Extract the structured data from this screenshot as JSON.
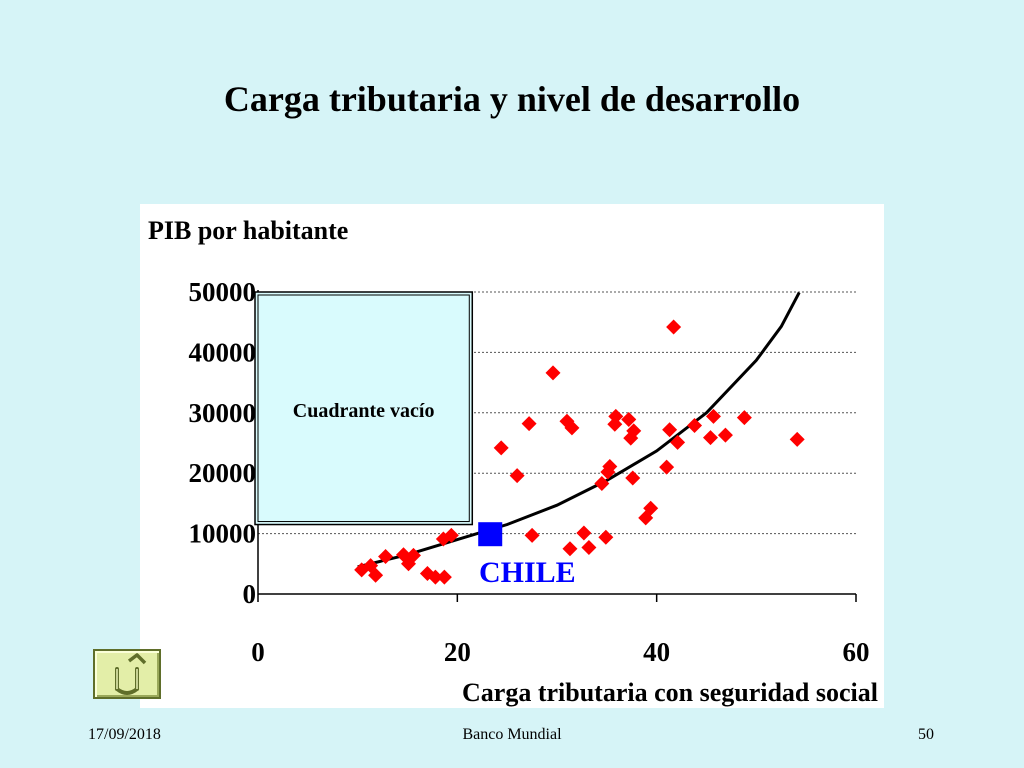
{
  "slide": {
    "title": "Carga tributaria y nivel de desarrollo",
    "footer_date": "17/09/2018",
    "footer_source": "Banco Mundial",
    "footer_page": "50",
    "background_color": "#d6f4f7"
  },
  "nav": {
    "back_icon": "u-turn-back-icon"
  },
  "chart_data": {
    "type": "scatter",
    "title": "",
    "ylabel": "PIB por habitante",
    "xlabel": "Carga tributaria con seguridad social",
    "xlim": [
      0,
      60
    ],
    "ylim": [
      0,
      50000
    ],
    "x_ticks": [
      0,
      20,
      40,
      60
    ],
    "y_ticks": [
      0,
      10000,
      20000,
      30000,
      40000,
      50000
    ],
    "y_tick_labels": [
      "0",
      "10000",
      "20000",
      "30000",
      "40000",
      "50000"
    ],
    "x_tick_labels": [
      "0",
      "20",
      "40",
      "60"
    ],
    "grid": "horizontal-dotted",
    "marker_color": "#ff0000",
    "highlight_color": "#0000ff",
    "trend_color": "#000000",
    "empty_quadrant": {
      "label": "Cuadrante vacío",
      "x_range": [
        0,
        21.5
      ],
      "y_range": [
        11500,
        50000
      ]
    },
    "highlight": {
      "label": "CHILE",
      "x": 23.3,
      "y": 9900
    },
    "points": [
      [
        10.4,
        4000
      ],
      [
        11.3,
        4700
      ],
      [
        11.8,
        3100
      ],
      [
        12.8,
        6200
      ],
      [
        14.6,
        6500
      ],
      [
        15.1,
        5000
      ],
      [
        15.6,
        6400
      ],
      [
        17.0,
        3400
      ],
      [
        17.8,
        2800
      ],
      [
        18.7,
        2800
      ],
      [
        18.6,
        9100
      ],
      [
        19.4,
        9700
      ],
      [
        24.4,
        24200
      ],
      [
        26.0,
        19600
      ],
      [
        27.2,
        28200
      ],
      [
        27.5,
        9700
      ],
      [
        29.6,
        36600
      ],
      [
        31.0,
        28600
      ],
      [
        31.3,
        7500
      ],
      [
        31.5,
        27500
      ],
      [
        32.7,
        10100
      ],
      [
        33.2,
        7700
      ],
      [
        34.5,
        18300
      ],
      [
        34.9,
        9400
      ],
      [
        35.1,
        20200
      ],
      [
        35.3,
        21100
      ],
      [
        35.8,
        28100
      ],
      [
        35.9,
        29400
      ],
      [
        37.2,
        28900
      ],
      [
        37.4,
        25800
      ],
      [
        37.6,
        19200
      ],
      [
        37.7,
        27000
      ],
      [
        38.9,
        12600
      ],
      [
        39.4,
        14200
      ],
      [
        41.0,
        21000
      ],
      [
        41.3,
        27200
      ],
      [
        41.7,
        44200
      ],
      [
        42.1,
        25100
      ],
      [
        43.8,
        27900
      ],
      [
        45.4,
        25900
      ],
      [
        45.7,
        29400
      ],
      [
        46.9,
        26300
      ],
      [
        48.8,
        29200
      ],
      [
        54.1,
        25600
      ]
    ],
    "trendline": [
      [
        10.0,
        4500
      ],
      [
        15.0,
        6500
      ],
      [
        20.0,
        9000
      ],
      [
        25.0,
        11500
      ],
      [
        30.0,
        14700
      ],
      [
        35.0,
        18800
      ],
      [
        40.0,
        23700
      ],
      [
        45.0,
        30000
      ],
      [
        50.0,
        38700
      ],
      [
        52.5,
        44300
      ],
      [
        54.3,
        49900
      ]
    ]
  }
}
